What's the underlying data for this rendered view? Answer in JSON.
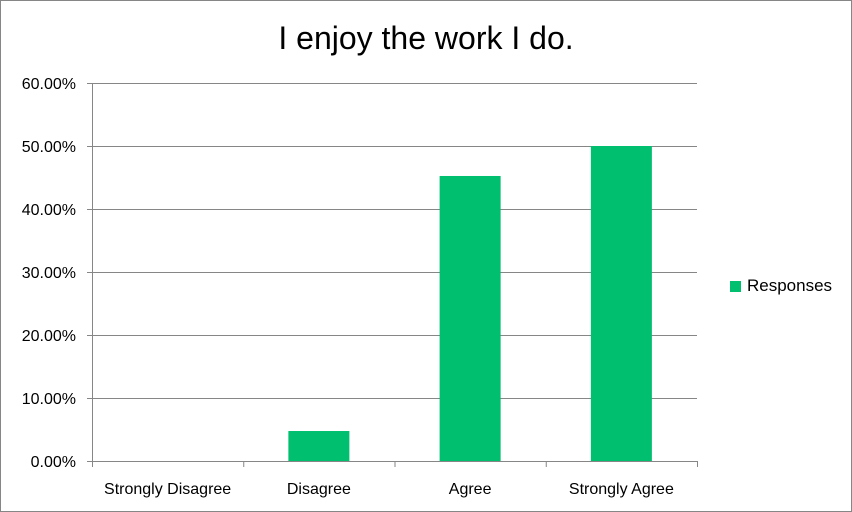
{
  "chart_data": {
    "type": "bar",
    "title": "I enjoy the work I do.",
    "categories": [
      "Strongly Disagree",
      "Disagree",
      "Agree",
      "Strongly Agree"
    ],
    "series": [
      {
        "name": "Responses",
        "values": [
          0,
          4.76,
          45.24,
          50.0
        ],
        "color": "#00BF6F"
      }
    ],
    "ylim": [
      0,
      60
    ],
    "yticks": [
      0,
      10,
      20,
      30,
      40,
      50,
      60
    ],
    "ytick_labels": [
      "0.00%",
      "10.00%",
      "20.00%",
      "30.00%",
      "40.00%",
      "50.00%",
      "60.00%"
    ],
    "grid": true,
    "legend_position": "right",
    "colors": {
      "grid": "#868686",
      "axis": "#868686",
      "border": "#868686"
    }
  }
}
